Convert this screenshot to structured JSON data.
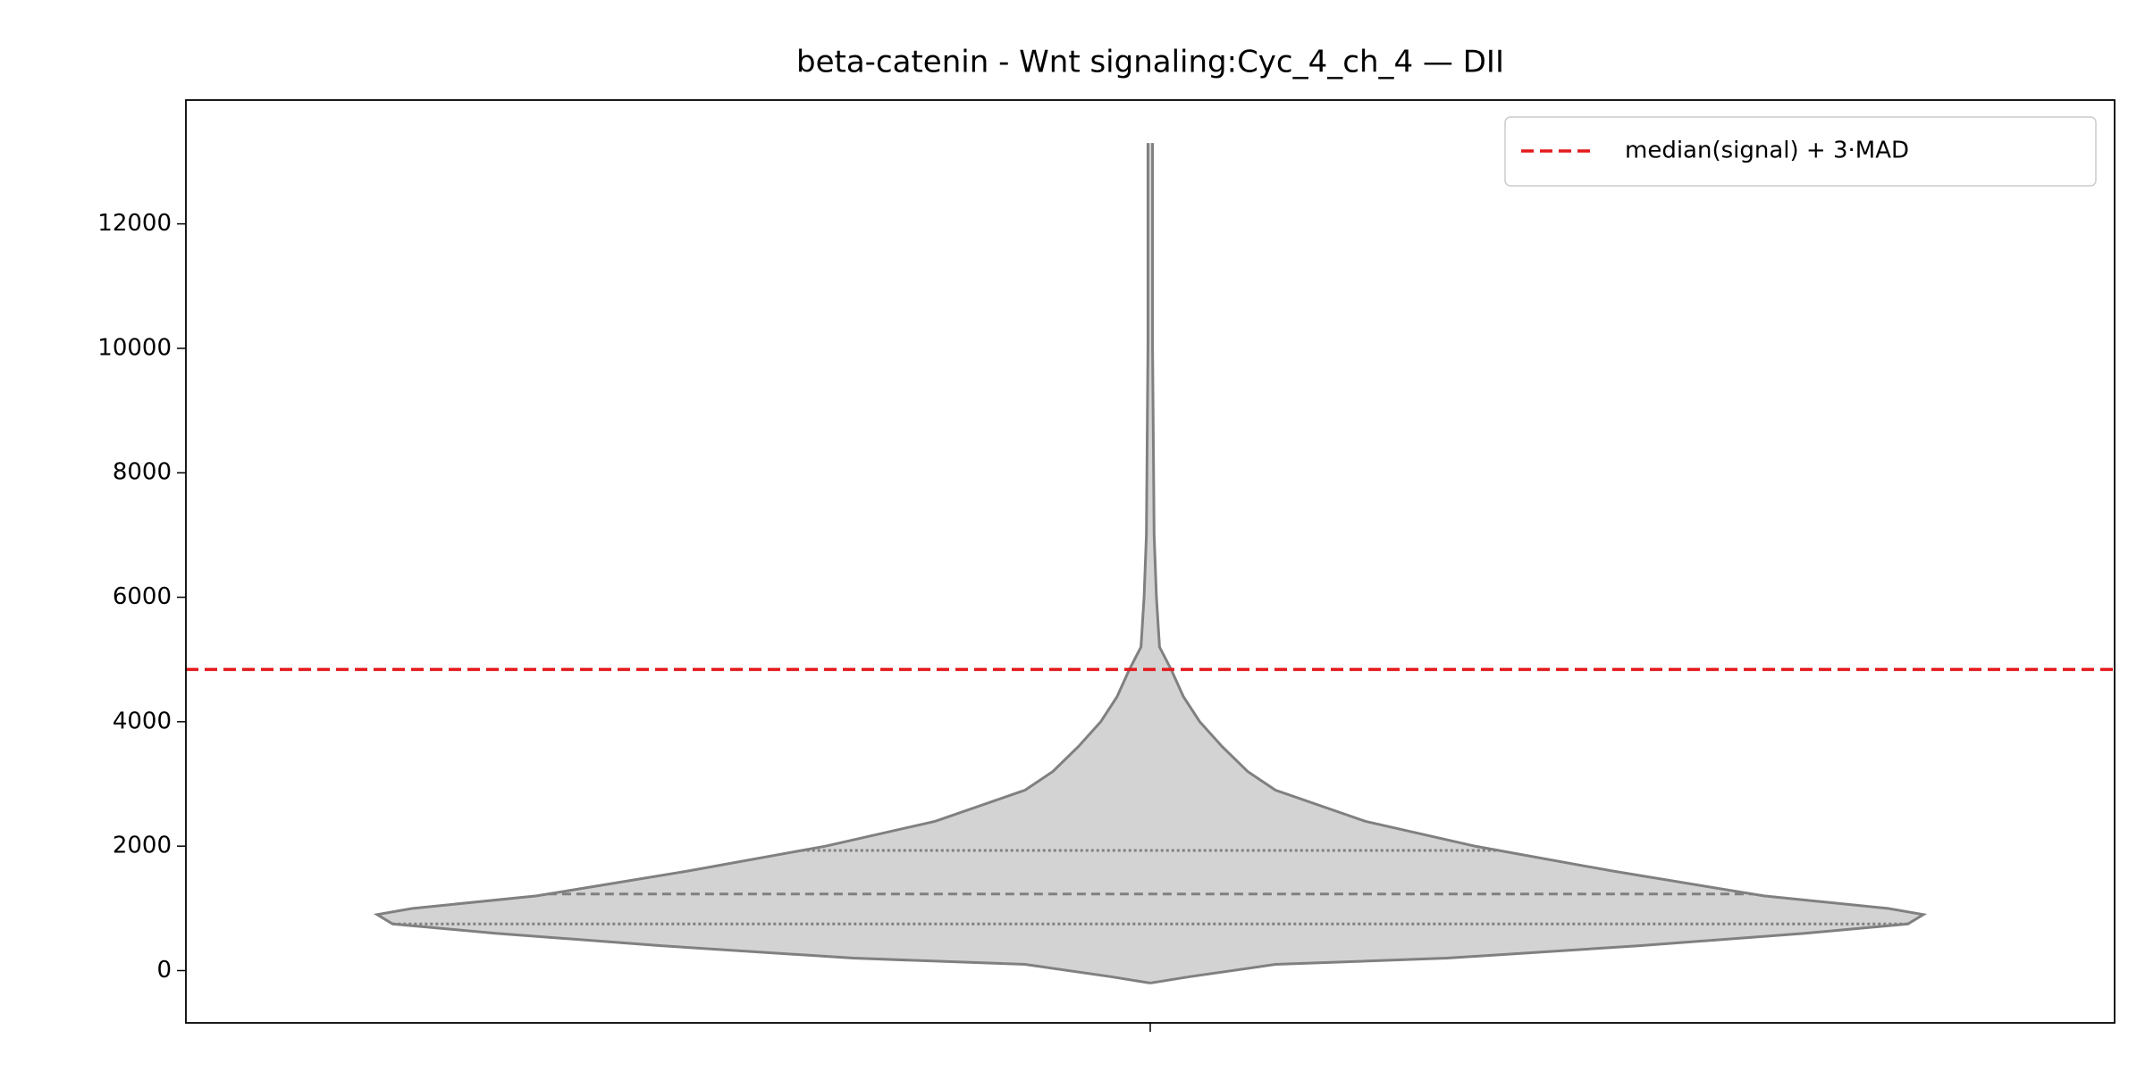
{
  "chart_data": {
    "type": "violin",
    "title": "beta-catenin - Wnt signaling:Cyc_4_ch_4 — DII",
    "categories": [
      null
    ],
    "ylim": [
      -840,
      13990
    ],
    "yticks": [
      0,
      2000,
      4000,
      6000,
      8000,
      10000,
      12000
    ],
    "violin": {
      "color": "#d3d3d3",
      "edge_color": "#808080",
      "y": [
        -200,
        -100,
        100,
        200,
        400,
        600,
        750,
        900,
        1000,
        1200,
        1600,
        2000,
        2400,
        2900,
        3200,
        3600,
        4000,
        4400,
        4840,
        5200,
        6000,
        7000,
        10000,
        13300
      ],
      "density": [
        0,
        0.05,
        0.162,
        0.384,
        0.633,
        0.847,
        0.98,
        1.0,
        0.954,
        0.794,
        0.598,
        0.42,
        0.278,
        0.162,
        0.126,
        0.093,
        0.064,
        0.043,
        0.027,
        0.012,
        0.008,
        0.005,
        0.003,
        0.003
      ],
      "quartiles": [
        750,
        1230,
        1930
      ]
    },
    "series": [
      {
        "name": "median(signal) + 3·MAD",
        "color": "#e41a1c",
        "value": 4840
      }
    ],
    "legend": "upper right"
  }
}
